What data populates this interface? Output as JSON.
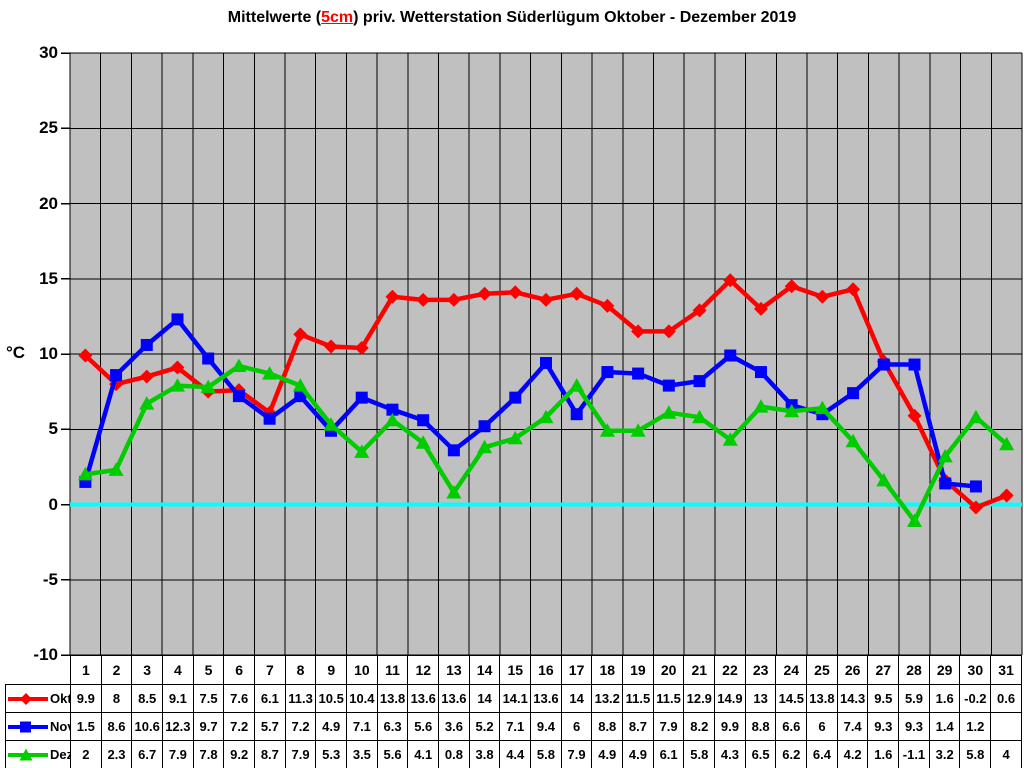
{
  "title": {
    "prefix": "Mittelwerte (",
    "highlight": "5cm",
    "suffix": ") priv. Wetterstation Süderlügum Oktober - Dezember 2019"
  },
  "chart_data": {
    "type": "line",
    "title": "Mittelwerte (5cm) priv. Wetterstation Süderlügum Oktober - Dezember 2019",
    "ylabel": "°C",
    "xlabel": "",
    "ylim": [
      -10,
      30
    ],
    "ytick_step": 5,
    "yticks": [
      30,
      25,
      20,
      15,
      10,
      5,
      0,
      -5,
      -10
    ],
    "x": [
      1,
      2,
      3,
      4,
      5,
      6,
      7,
      8,
      9,
      10,
      11,
      12,
      13,
      14,
      15,
      16,
      17,
      18,
      19,
      20,
      21,
      22,
      23,
      24,
      25,
      26,
      27,
      28,
      29,
      30,
      31
    ],
    "grid": true,
    "plot_background": "#c0c0c0",
    "gridline_color": "#000000",
    "zero_line_color": "#00ffff",
    "legend_position": "table-left",
    "series": [
      {
        "name": "Okt",
        "color": "#ff0000",
        "marker": "diamond",
        "values": [
          9.9,
          8,
          8.5,
          9.1,
          7.5,
          7.6,
          6.1,
          11.3,
          10.5,
          10.4,
          13.8,
          13.6,
          13.6,
          14,
          14.1,
          13.6,
          14,
          13.2,
          11.5,
          11.5,
          12.9,
          14.9,
          13,
          14.5,
          13.8,
          14.3,
          9.5,
          5.9,
          1.6,
          -0.2,
          0.6
        ]
      },
      {
        "name": "Nov",
        "color": "#0000ff",
        "marker": "square",
        "values": [
          1.5,
          8.6,
          10.6,
          12.3,
          9.7,
          7.2,
          5.7,
          7.2,
          4.9,
          7.1,
          6.3,
          5.6,
          3.6,
          5.2,
          7.1,
          9.4,
          6,
          8.8,
          8.7,
          7.9,
          8.2,
          9.9,
          8.8,
          6.6,
          6,
          7.4,
          9.3,
          9.3,
          1.4,
          1.2,
          null
        ]
      },
      {
        "name": "Dez",
        "color": "#00cc00",
        "marker": "triangle",
        "values": [
          2,
          2.3,
          6.7,
          7.9,
          7.8,
          9.2,
          8.7,
          7.9,
          5.3,
          3.5,
          5.6,
          4.1,
          0.8,
          3.8,
          4.4,
          5.8,
          7.9,
          4.9,
          4.9,
          6.1,
          5.8,
          4.3,
          6.5,
          6.2,
          6.4,
          4.2,
          1.6,
          -1.1,
          3.2,
          5.8,
          4
        ]
      }
    ]
  }
}
